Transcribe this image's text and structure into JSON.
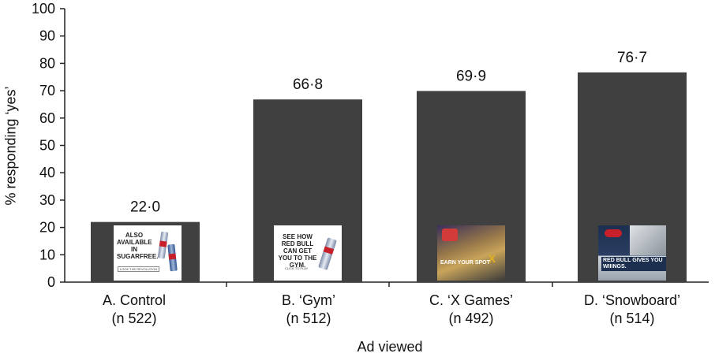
{
  "chart_data": {
    "type": "bar",
    "categories": [
      "A. Control",
      "B. ‘Gym’",
      "C. ‘X Games’",
      "D. ‘Snowboard’"
    ],
    "category_n": [
      "(n 522)",
      "(n 512)",
      "(n 492)",
      "(n 514)"
    ],
    "values": [
      22.0,
      66.8,
      69.9,
      76.7
    ],
    "value_labels": [
      "22·0",
      "66·8",
      "69·9",
      "76·7"
    ],
    "ylabel": "% responding ‘yes’",
    "xlabel": "Ad viewed",
    "ylim": [
      0,
      100
    ],
    "yticks": [
      0,
      10,
      20,
      30,
      40,
      50,
      60,
      70,
      80,
      90,
      100
    ],
    "grid": false,
    "bar_color": "#404040"
  },
  "ads": {
    "control_text": "ALSO AVAILABLE IN SUGARFREE.",
    "control_small": "LOOK THE REVOLUTION",
    "gym_text": "SEE HOW RED BULL CAN GET YOU TO THE GYM.",
    "gym_small": "CLICK TO PLAY",
    "xgames_text": "EARN YOUR SPOT",
    "snowboard_text": "RED BULL GIVES YOU WIIINGS."
  }
}
